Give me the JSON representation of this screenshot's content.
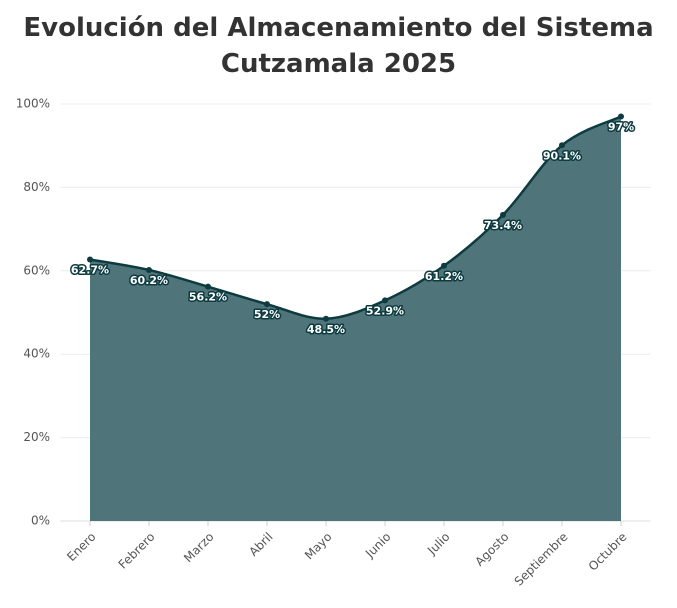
{
  "chart_data": {
    "type": "area",
    "title": "Evolución del Almacenamiento del Sistema Cutzamala 2025",
    "categories": [
      "Enero",
      "Febrero",
      "Marzo",
      "Abril",
      "Mayo",
      "Junio",
      "Julio",
      "Agosto",
      "Septiembre",
      "Octubre"
    ],
    "values": [
      62.7,
      60.2,
      56.2,
      52,
      48.5,
      52.9,
      61.2,
      73.4,
      90.1,
      97
    ],
    "value_labels": [
      "62.7%",
      "60.2%",
      "56.2%",
      "52%",
      "48.5%",
      "52.9%",
      "61.2%",
      "73.4%",
      "90.1%",
      "97%"
    ],
    "color": "#4f7479",
    "line_color": "#0d3b40",
    "ylim": [
      0,
      100
    ],
    "yticks": [
      {
        "value": 0,
        "label": "0%"
      },
      {
        "value": 20,
        "label": "20%"
      },
      {
        "value": 40,
        "label": "40%"
      },
      {
        "value": 60,
        "label": "60%"
      },
      {
        "value": 80,
        "label": "80%"
      },
      {
        "value": 100,
        "label": "100%"
      }
    ],
    "grid": true
  }
}
